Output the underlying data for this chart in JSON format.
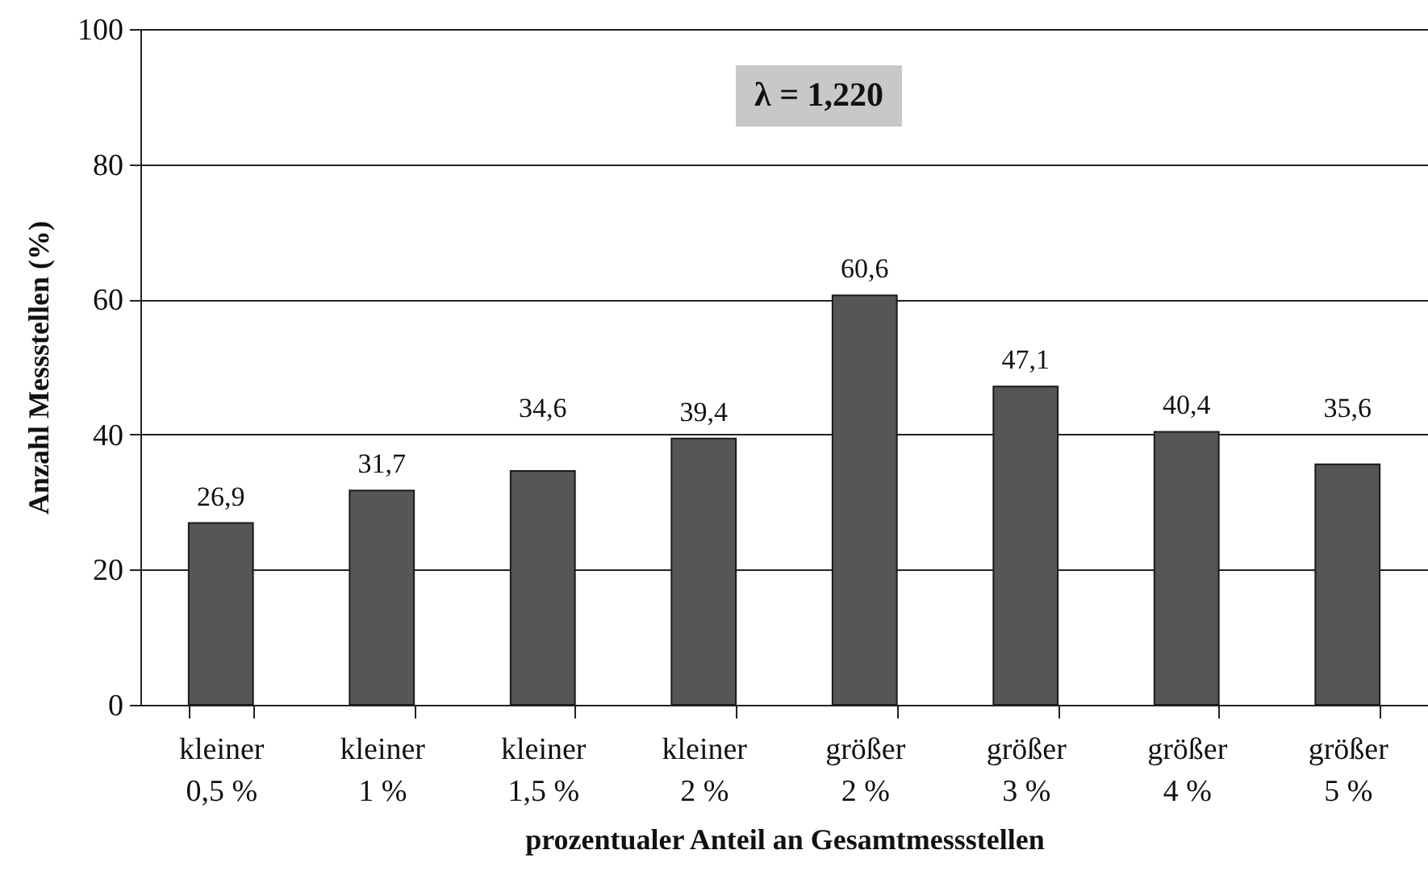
{
  "chart_data": {
    "type": "bar",
    "categories": [
      "kleiner 0,5 %",
      "kleiner 1 %",
      "kleiner 1,5 %",
      "kleiner 2 %",
      "größer 2 %",
      "größer 3 %",
      "größer 4 %",
      "größer 5 %"
    ],
    "values": [
      26.9,
      31.7,
      34.6,
      39.4,
      60.6,
      47.1,
      40.4,
      35.6
    ],
    "value_labels": [
      "26,9",
      "31,7",
      "34,6",
      "39,4",
      "60,6",
      "47,1",
      "40,4",
      "35,6"
    ],
    "color": "#555657",
    "xlabel": "prozentualer Anteil an Gesamtmessstellen",
    "ylabel": "Anzahl Messstellen (%)",
    "ylim": [
      0,
      100
    ],
    "yticks": [
      0,
      20,
      40,
      60,
      80,
      100
    ],
    "grid": "y",
    "annotations": [
      "λ = 1,220"
    ]
  }
}
